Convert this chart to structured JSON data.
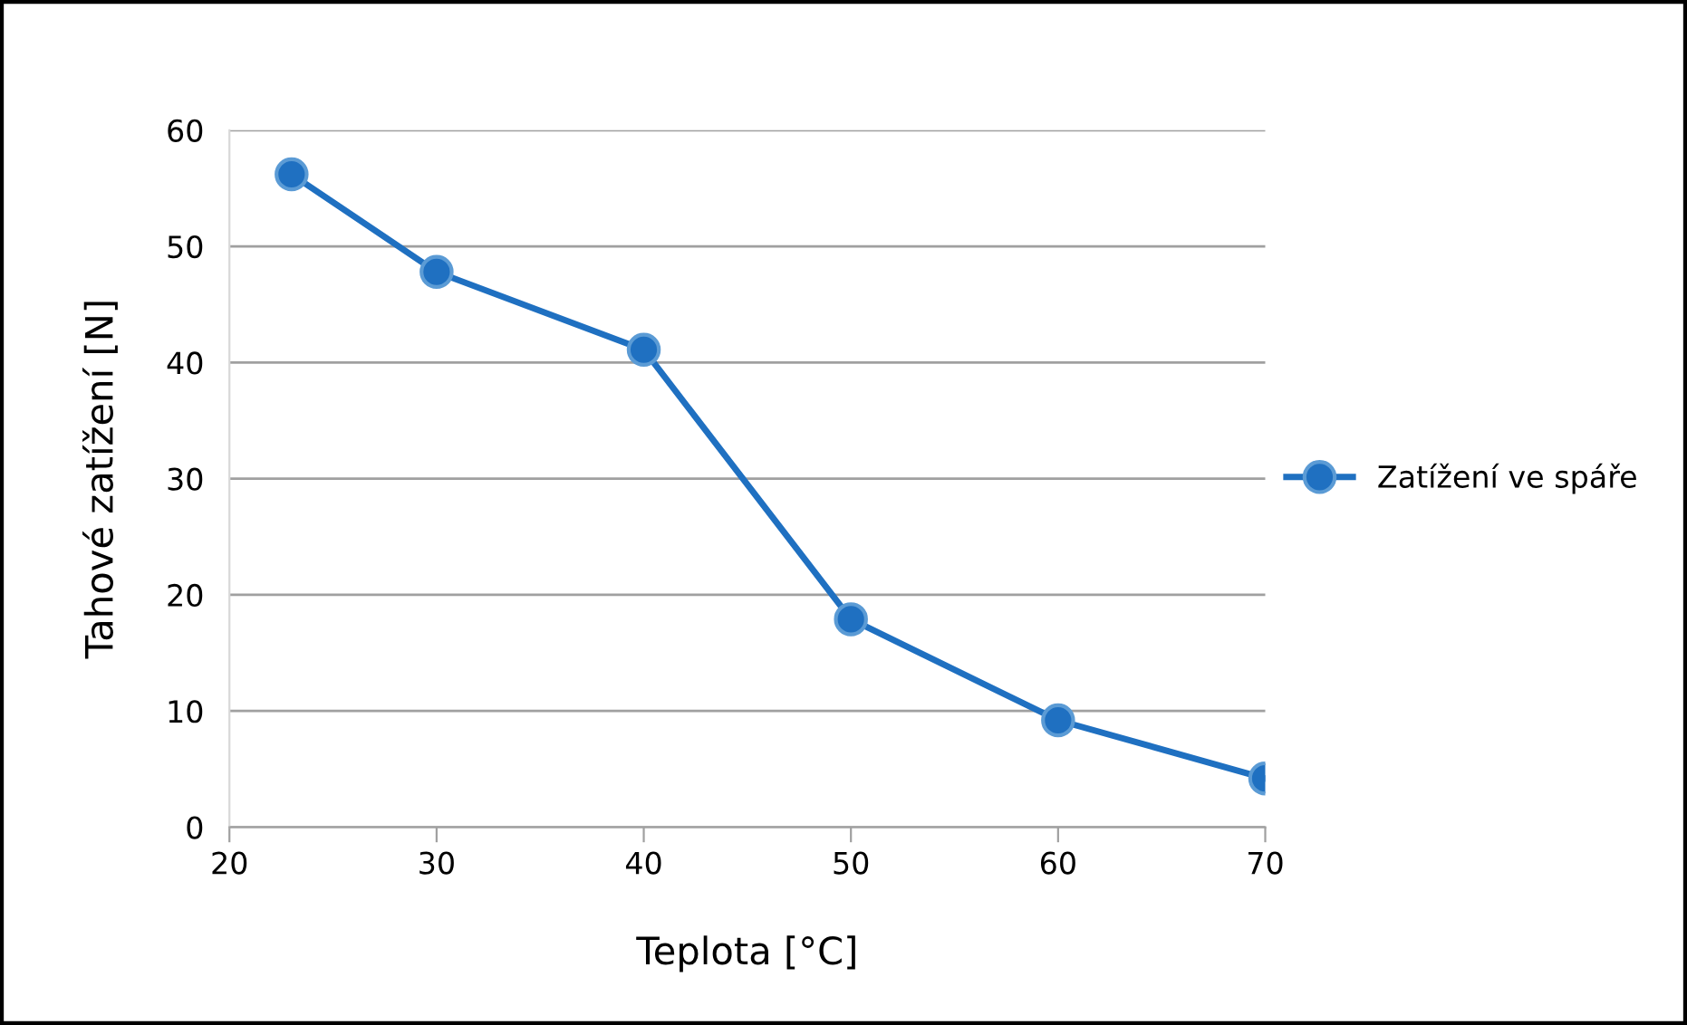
{
  "chart_data": {
    "type": "line",
    "xlabel": "Teplota [°C]",
    "ylabel": "Tahové zatížení [N]",
    "x": [
      23,
      30,
      40,
      50,
      60,
      70
    ],
    "series": [
      {
        "name": "Zatížení ve spáře",
        "color": "#1f70c1",
        "values": [
          56.2,
          47.8,
          41.1,
          17.9,
          9.2,
          4.2
        ]
      }
    ],
    "xlim": [
      20,
      70
    ],
    "xticks": [
      20,
      30,
      40,
      50,
      60,
      70
    ],
    "ylim": [
      0,
      60
    ],
    "yticks": [
      0,
      10,
      20,
      30,
      40,
      50,
      60
    ],
    "grid": "y",
    "legend": "right",
    "marker": "circle",
    "line_style": "solid"
  }
}
